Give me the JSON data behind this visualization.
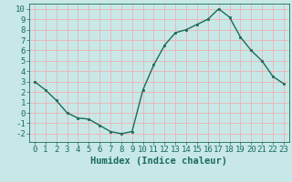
{
  "x": [
    0,
    1,
    2,
    3,
    4,
    5,
    6,
    7,
    8,
    9,
    10,
    11,
    12,
    13,
    14,
    15,
    16,
    17,
    18,
    19,
    20,
    21,
    22,
    23
  ],
  "y": [
    3,
    2.2,
    1.2,
    0.0,
    -0.5,
    -0.6,
    -1.2,
    -1.8,
    -2.0,
    -1.8,
    2.2,
    4.6,
    6.5,
    7.7,
    8.0,
    8.5,
    9.0,
    10.0,
    9.2,
    7.3,
    6.0,
    5.0,
    3.5,
    2.8
  ],
  "line_color": "#1a6b5a",
  "marker": "s",
  "marker_size": 2.0,
  "bg_color": "#c8e8e8",
  "grid_color": "#e8b8b8",
  "xlabel": "Humidex (Indice chaleur)",
  "xlim": [
    -0.5,
    23.5
  ],
  "ylim": [
    -2.8,
    10.5
  ],
  "yticks": [
    -2,
    -1,
    0,
    1,
    2,
    3,
    4,
    5,
    6,
    7,
    8,
    9,
    10
  ],
  "xticks": [
    0,
    1,
    2,
    3,
    4,
    5,
    6,
    7,
    8,
    9,
    10,
    11,
    12,
    13,
    14,
    15,
    16,
    17,
    18,
    19,
    20,
    21,
    22,
    23
  ],
  "xlabel_fontsize": 7.5,
  "tick_fontsize": 6.5,
  "axis_color": "#1a6b5a",
  "line_width": 1.0
}
